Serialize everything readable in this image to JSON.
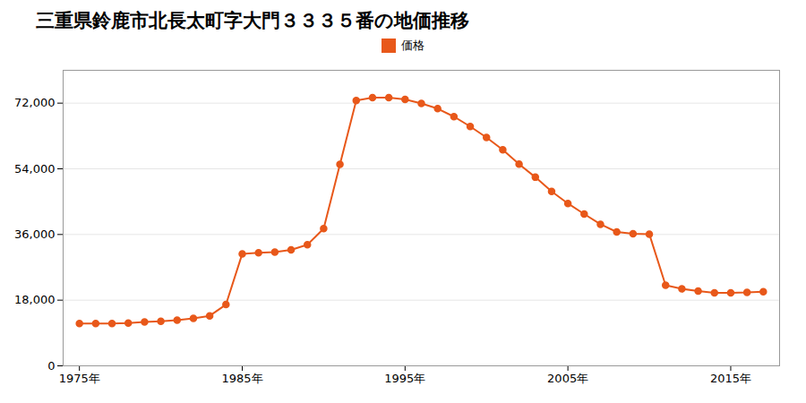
{
  "chart_data": {
    "type": "line",
    "title": "三重県鈴鹿市北長太町字大門３３３５番の地価推移",
    "x": [
      1975,
      1976,
      1977,
      1978,
      1979,
      1980,
      1981,
      1982,
      1983,
      1984,
      1985,
      1986,
      1987,
      1988,
      1989,
      1990,
      1991,
      1992,
      1993,
      1994,
      1995,
      1996,
      1997,
      1998,
      1999,
      2000,
      2001,
      2002,
      2003,
      2004,
      2005,
      2006,
      2007,
      2008,
      2009,
      2010,
      2011,
      2012,
      2013,
      2014,
      2015,
      2016,
      2017
    ],
    "series": [
      {
        "name": "価格",
        "color": "#E8581A",
        "marker": "circle",
        "values": [
          11600,
          11600,
          11600,
          11700,
          12000,
          12200,
          12500,
          13000,
          13700,
          16800,
          30700,
          31000,
          31200,
          31800,
          33200,
          37600,
          55200,
          72700,
          73500,
          73500,
          73000,
          71900,
          70500,
          68300,
          65600,
          62600,
          59200,
          55300,
          51700,
          47800,
          44500,
          41600,
          38800,
          36700,
          36200,
          36100,
          22100,
          21100,
          20500,
          20000,
          20000,
          20100,
          20300
        ]
      }
    ],
    "xlim": [
      1974,
      2018
    ],
    "xticks": [
      {
        "value": 1975,
        "label": "1975年"
      },
      {
        "value": 1985,
        "label": "1985年"
      },
      {
        "value": 1995,
        "label": "1995年"
      },
      {
        "value": 2005,
        "label": "2005年"
      },
      {
        "value": 2015,
        "label": "2015年"
      }
    ],
    "ylim": [
      0,
      81000
    ],
    "yticks": [
      0,
      {
        "value": 18000,
        "label": "18,000"
      },
      {
        "value": 36000,
        "label": "36,000"
      },
      {
        "value": 54000,
        "label": "54,000"
      },
      {
        "value": 72000,
        "label": "72,000"
      }
    ],
    "grid": true,
    "legend": "top"
  }
}
